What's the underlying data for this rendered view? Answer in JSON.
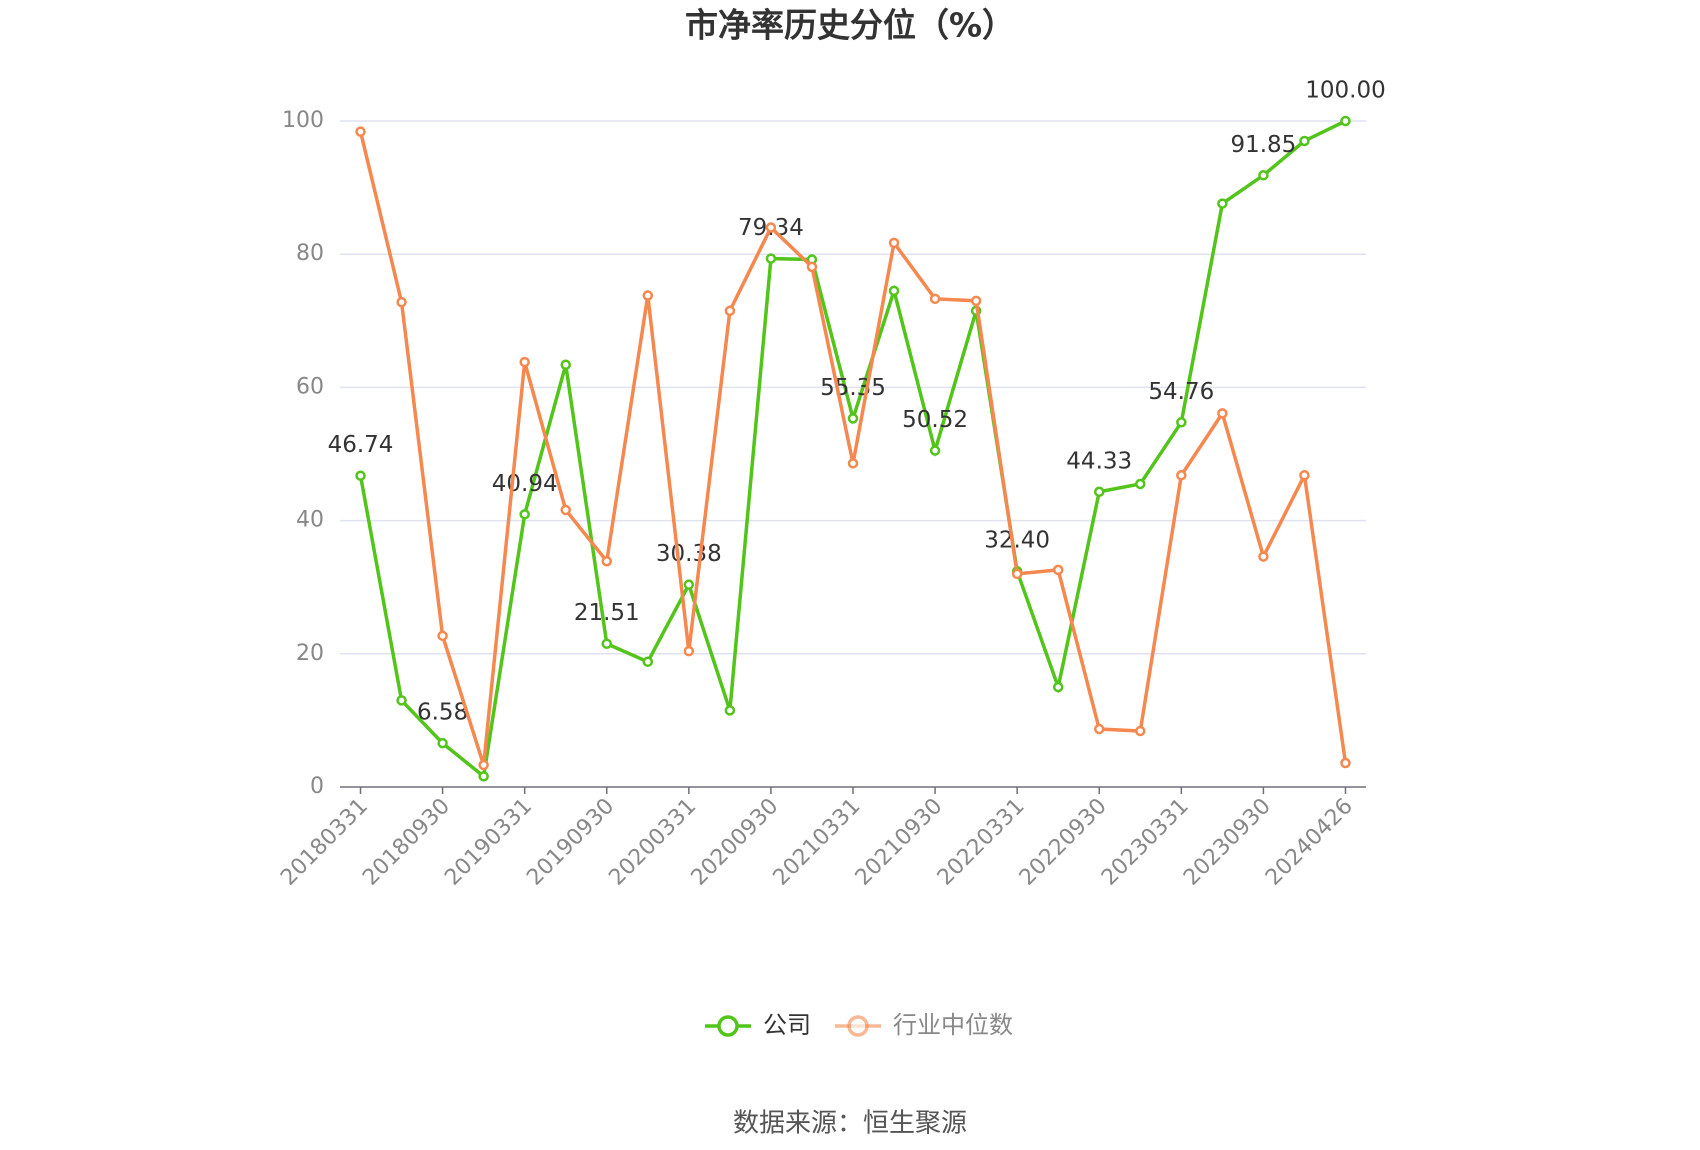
{
  "chart_data": {
    "type": "line",
    "title": "市净率历史分位（%）",
    "categories": [
      "20180331",
      null,
      "20180930",
      null,
      "20190331",
      null,
      "20190930",
      null,
      "20200331",
      null,
      "20200930",
      null,
      "20210331",
      null,
      "20210930",
      null,
      "20220331",
      null,
      "20220930",
      null,
      "20230331",
      null,
      "20230930",
      null,
      "20240426"
    ],
    "series": [
      {
        "name": "公司",
        "color": "#52c41a",
        "values": [
          46.74,
          13.0,
          6.58,
          1.6,
          40.94,
          63.4,
          21.51,
          18.8,
          30.38,
          11.5,
          79.34,
          79.2,
          55.35,
          74.5,
          50.52,
          71.5,
          32.4,
          15.0,
          44.33,
          45.5,
          54.76,
          87.6,
          91.85,
          97.0,
          100
        ],
        "value_labels": [
          "46.74",
          null,
          "6.58",
          null,
          "40.94",
          null,
          "21.51",
          null,
          "30.38",
          null,
          "79.34",
          null,
          "55.35",
          null,
          "50.52",
          null,
          "32.40",
          null,
          "44.33",
          null,
          "54.76",
          null,
          "91.85",
          null,
          "100.00"
        ]
      },
      {
        "name": "行业中位数",
        "color": "#f5884f",
        "values": [
          98.4,
          72.8,
          22.7,
          3.3,
          63.8,
          41.6,
          33.9,
          73.8,
          20.4,
          71.5,
          84.0,
          78.1,
          48.6,
          81.7,
          73.3,
          73.0,
          32.0,
          32.6,
          8.7,
          8.4,
          46.8,
          56.1,
          34.6,
          46.8,
          3.6
        ]
      }
    ],
    "ylim": [
      0,
      100
    ],
    "yticks": [
      0,
      20,
      40,
      60,
      80,
      100
    ],
    "grid": true,
    "source": "数据来源：恒生聚源"
  }
}
